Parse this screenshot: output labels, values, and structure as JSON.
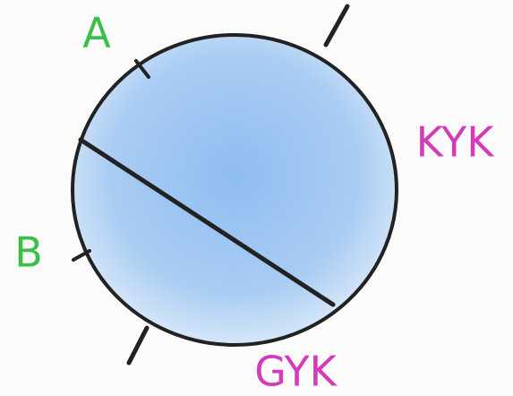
{
  "nodes": [
    {
      "label": "A"
    },
    {
      "label": "B"
    },
    {
      "label": "KYK"
    },
    {
      "label": "GYK"
    }
  ]
}
